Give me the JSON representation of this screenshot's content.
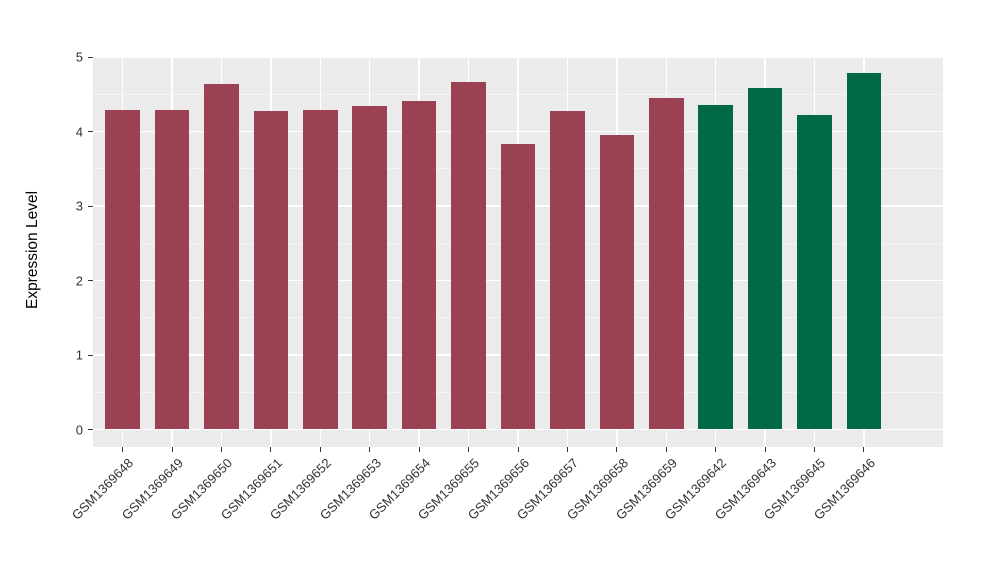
{
  "chart_data": {
    "type": "bar",
    "title": "",
    "xlabel": "",
    "ylabel": "Expression Level",
    "categories": [
      "GSM1369648",
      "GSM1369649",
      "GSM1369650",
      "GSM1369651",
      "GSM1369652",
      "GSM1369653",
      "GSM1369654",
      "GSM1369655",
      "GSM1369656",
      "GSM1369657",
      "GSM1369658",
      "GSM1369659",
      "GSM1369642",
      "GSM1369643",
      "GSM1369645",
      "GSM1369646"
    ],
    "values": [
      4.29,
      4.29,
      4.64,
      4.27,
      4.29,
      4.34,
      4.41,
      4.66,
      3.83,
      4.27,
      3.95,
      4.45,
      4.35,
      4.59,
      4.22,
      4.79
    ],
    "bar_colors": [
      "#9A4253",
      "#9A4253",
      "#9A4253",
      "#9A4253",
      "#9A4253",
      "#9A4253",
      "#9A4253",
      "#9A4253",
      "#9A4253",
      "#9A4253",
      "#9A4253",
      "#9A4253",
      "#006946",
      "#006946",
      "#006946",
      "#006946"
    ],
    "group_colors": {
      "left_group": "#9A4253",
      "right_group": "#006946"
    },
    "ylim": [
      0,
      5
    ],
    "yticks": [
      0,
      1,
      2,
      3,
      4,
      5
    ],
    "yticks_minor": [
      0.5,
      1.5,
      2.5,
      3.5,
      4.5
    ],
    "grid": true,
    "legend": "none",
    "style": {
      "panel_bg": "#EBEBEB",
      "grid_major_color": "#FFFFFF",
      "grid_minor_color": "rgba(255,255,255,0.5)",
      "axis_text_color": "#333333",
      "tick_color": "#333333"
    }
  }
}
